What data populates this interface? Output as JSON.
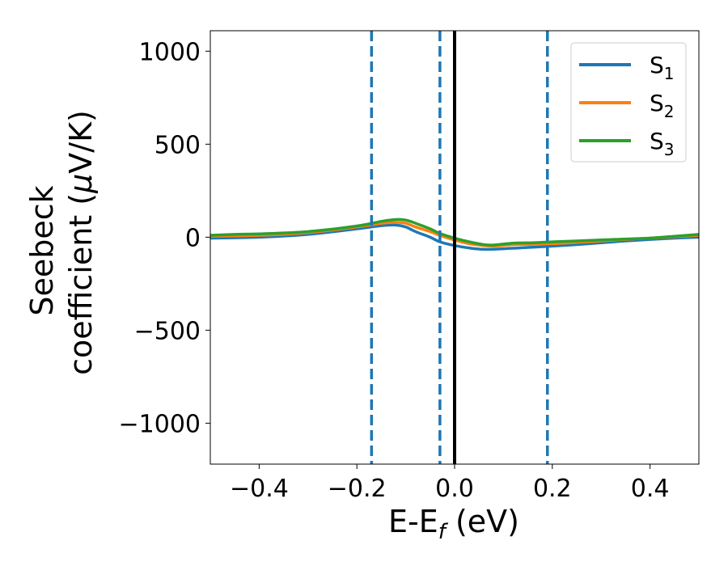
{
  "chart_data": {
    "type": "line",
    "xlabel": {
      "main": "E-E",
      "sub": "f",
      "unit": " (eV)"
    },
    "ylabel": {
      "line1": "Seebeck",
      "line2": "coefficient  (",
      "mu": "μ",
      "line2_end": "V/K)"
    },
    "xlim": [
      -0.5,
      0.5
    ],
    "ylim": [
      -1220,
      1110
    ],
    "xticks": [
      -0.4,
      -0.2,
      0.0,
      0.2,
      0.4
    ],
    "xtick_labels": [
      "−0.4",
      "−0.2",
      "0.0",
      "0.2",
      "0.4"
    ],
    "yticks": [
      1000,
      500,
      0,
      -500,
      -1000
    ],
    "ytick_labels": [
      "1000",
      "500",
      "0",
      "−500",
      "−1000"
    ],
    "grid": false,
    "legend_position": "top-right",
    "series": [
      {
        "name": "S",
        "sub": "1",
        "color": "#1f77b4",
        "x": [
          -0.5,
          -0.4,
          -0.3,
          -0.2,
          -0.15,
          -0.12,
          -0.1,
          -0.08,
          -0.05,
          -0.03,
          0.0,
          0.03,
          0.06,
          0.1,
          0.15,
          0.2,
          0.25,
          0.3,
          0.35,
          0.4,
          0.45,
          0.5
        ],
        "y": [
          -5,
          0,
          15,
          45,
          62,
          65,
          55,
          30,
          0,
          -25,
          -45,
          -58,
          -65,
          -62,
          -55,
          -48,
          -40,
          -30,
          -20,
          -12,
          -5,
          0
        ]
      },
      {
        "name": "S",
        "sub": "2",
        "color": "#ff7f0e",
        "x": [
          -0.5,
          -0.4,
          -0.3,
          -0.2,
          -0.15,
          -0.12,
          -0.1,
          -0.08,
          -0.05,
          -0.03,
          0.0,
          0.03,
          0.06,
          0.08,
          0.12,
          0.16,
          0.2,
          0.25,
          0.3,
          0.35,
          0.4,
          0.45,
          0.5
        ],
        "y": [
          5,
          10,
          25,
          55,
          75,
          80,
          75,
          55,
          30,
          10,
          -15,
          -35,
          -45,
          -48,
          -40,
          -38,
          -35,
          -28,
          -20,
          -12,
          -5,
          2,
          10
        ]
      },
      {
        "name": "S",
        "sub": "3",
        "color": "#2ca02c",
        "x": [
          -0.5,
          -0.45,
          -0.4,
          -0.3,
          -0.2,
          -0.15,
          -0.12,
          -0.1,
          -0.08,
          -0.05,
          -0.03,
          0.0,
          0.03,
          0.06,
          0.08,
          0.12,
          0.16,
          0.2,
          0.25,
          0.3,
          0.35,
          0.4,
          0.45,
          0.5
        ],
        "y": [
          10,
          15,
          18,
          30,
          60,
          85,
          95,
          92,
          75,
          45,
          20,
          -5,
          -25,
          -40,
          -42,
          -32,
          -30,
          -25,
          -20,
          -15,
          -10,
          -5,
          5,
          15
        ]
      }
    ],
    "vlines": [
      {
        "x": -0.17,
        "style": "dashed",
        "color": "#1f77b4"
      },
      {
        "x": -0.03,
        "style": "dashed",
        "color": "#1f77b4"
      },
      {
        "x": 0.0,
        "style": "solid",
        "color": "#000000"
      },
      {
        "x": 0.19,
        "style": "dashed",
        "color": "#1f77b4"
      }
    ]
  }
}
